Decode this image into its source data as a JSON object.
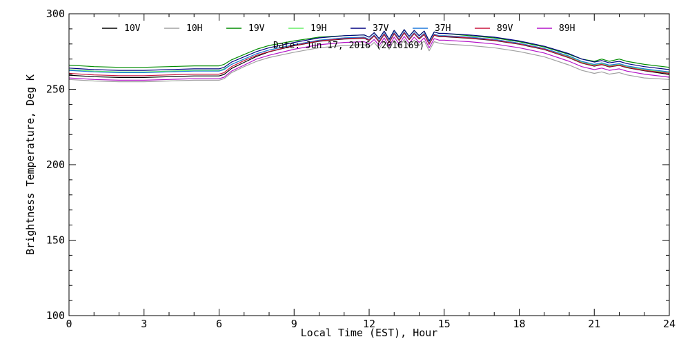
{
  "chart_data": {
    "type": "line",
    "date_label": "Date: Jun 17, 2016 (2016169)",
    "xlabel": "Local Time (EST), Hour",
    "ylabel": "Brightness Temperature, Deg K",
    "xlim": [
      0,
      24
    ],
    "ylim": [
      100,
      300
    ],
    "xticks": [
      0,
      3,
      6,
      9,
      12,
      15,
      18,
      21,
      24
    ],
    "yticks": [
      100,
      150,
      200,
      250,
      300
    ],
    "grid": false,
    "legend_position": "top",
    "x": [
      0,
      1,
      2,
      3,
      4,
      5,
      6,
      6.2,
      6.5,
      7,
      7.5,
      8,
      9,
      10,
      11,
      11.8,
      12,
      12.2,
      12.4,
      12.6,
      12.8,
      13,
      13.2,
      13.4,
      13.6,
      13.8,
      14,
      14.2,
      14.4,
      14.6,
      14.8,
      15,
      16,
      17,
      18,
      19,
      20,
      20.5,
      21,
      21.3,
      21.6,
      22,
      22.3,
      23,
      24
    ],
    "series": [
      {
        "name": "10V",
        "color": "#000000",
        "values": [
          259.3,
          258.3,
          257.8,
          257.8,
          258.3,
          258.8,
          258.8,
          259.8,
          263.8,
          267.8,
          271.8,
          274.8,
          278.8,
          281.8,
          283.3,
          283.8,
          282.3,
          285.3,
          281.3,
          286.3,
          280.8,
          286.8,
          282.3,
          287.3,
          282.8,
          286.8,
          283.3,
          286.3,
          279.8,
          285.8,
          284.8,
          284.8,
          283.8,
          282.3,
          279.8,
          276.3,
          270.8,
          267.3,
          265.3,
          266.3,
          264.8,
          265.8,
          264.3,
          262.3,
          259.8
        ]
      },
      {
        "name": "10H",
        "color": "#a0a0a0",
        "values": [
          256.5,
          255.5,
          255,
          255,
          255.5,
          256,
          256,
          257,
          261,
          265,
          268.5,
          271,
          274.5,
          277.5,
          279,
          279.5,
          278,
          281,
          277,
          282,
          276.5,
          282.5,
          278,
          283,
          278.5,
          282.5,
          279,
          282,
          275.5,
          281.5,
          280.5,
          280,
          279,
          277.5,
          275,
          271.5,
          266,
          262.5,
          260.5,
          261.5,
          260,
          261,
          259.5,
          257.5,
          256.5
        ]
      },
      {
        "name": "19V",
        "color": "#008c00",
        "values": [
          266,
          265,
          264.5,
          264.5,
          265,
          265.5,
          265.5,
          266.5,
          269.5,
          273,
          276.5,
          279,
          282,
          284.5,
          285.5,
          286,
          284.5,
          287.5,
          283.5,
          288.5,
          283,
          289,
          284.5,
          289.5,
          285,
          289,
          285.5,
          288.5,
          282,
          288,
          287,
          287,
          285.5,
          284,
          281.5,
          278,
          273,
          270,
          268.5,
          270,
          268.5,
          270,
          268.5,
          266.5,
          264.5
        ]
      },
      {
        "name": "19H",
        "color": "#66ee66",
        "values": [
          263,
          262,
          261.5,
          261.5,
          262,
          262.5,
          262.5,
          263.5,
          266.5,
          270,
          273.5,
          276,
          279.5,
          282.5,
          284,
          284.5,
          283,
          286,
          282,
          287,
          281.5,
          287.5,
          283,
          288,
          283.5,
          287.5,
          284,
          287,
          280.5,
          286.5,
          285.5,
          285.5,
          284.5,
          283,
          280.5,
          277,
          271.5,
          268,
          266,
          267,
          265.5,
          266.5,
          265,
          263,
          261
        ]
      },
      {
        "name": "37V",
        "color": "#000080",
        "values": [
          264,
          263,
          262.5,
          262.5,
          263,
          263.5,
          263.5,
          264.5,
          268,
          271.5,
          275,
          277.5,
          281,
          284,
          285.5,
          286,
          284.5,
          287.5,
          283.5,
          288.5,
          283,
          289,
          284.5,
          289.5,
          285,
          289,
          285.5,
          288.5,
          282,
          288,
          287,
          287,
          286,
          284.5,
          282,
          278.5,
          273.5,
          270,
          268,
          269,
          267.5,
          268.5,
          267,
          265,
          263
        ]
      },
      {
        "name": "37H",
        "color": "#1e78dc",
        "values": [
          262.5,
          261.5,
          261,
          261,
          261.5,
          262,
          262,
          263,
          266.5,
          270,
          273.5,
          276,
          279.5,
          282.5,
          284,
          284.5,
          283,
          286,
          282,
          287,
          281.5,
          287.5,
          283,
          288,
          283.5,
          287.5,
          284,
          287,
          280.5,
          286.5,
          285.5,
          285.5,
          284.5,
          283,
          280.5,
          277,
          272,
          268.5,
          266.5,
          267.5,
          266,
          267,
          265.5,
          263.5,
          261.5
        ]
      },
      {
        "name": "89V",
        "color": "#c8143c",
        "values": [
          260.5,
          259.5,
          259,
          259,
          259.5,
          260,
          260,
          261,
          265,
          269,
          272.5,
          275,
          279,
          282,
          283.5,
          284,
          282.5,
          285.5,
          281.5,
          286.5,
          281,
          287,
          282.5,
          287.5,
          283,
          287,
          283.5,
          286.5,
          280,
          286,
          285,
          285,
          284,
          282.5,
          280,
          276.5,
          271,
          267.5,
          265.5,
          266.5,
          265,
          266,
          264.5,
          262.5,
          260.5
        ]
      },
      {
        "name": "89H",
        "color": "#b414c8",
        "values": [
          257.5,
          256.5,
          256,
          256,
          256.5,
          257,
          257,
          258,
          262,
          266,
          270,
          272.5,
          276.5,
          279.5,
          281,
          281.5,
          280,
          283,
          279,
          284,
          278.5,
          284.5,
          280,
          285,
          280.5,
          284.5,
          281,
          284,
          277.5,
          283.5,
          282.5,
          282.5,
          281.5,
          280,
          277.5,
          274,
          268.5,
          265,
          263,
          264,
          262.5,
          263.5,
          262,
          260,
          258
        ]
      }
    ]
  }
}
